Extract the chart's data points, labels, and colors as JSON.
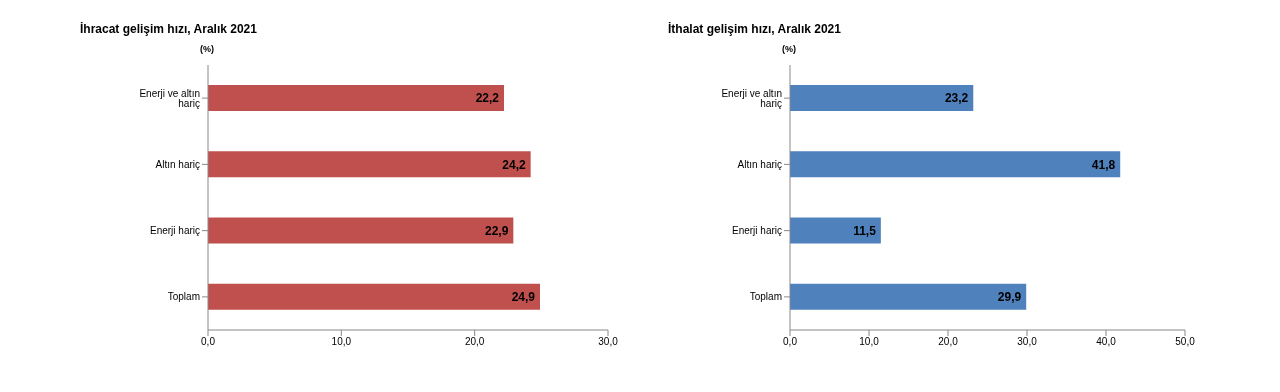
{
  "chart_data": [
    {
      "type": "bar",
      "orientation": "horizontal",
      "title": "İhracat gelişim hızı, Aralık 2021",
      "ylabel": "(%)",
      "categories": [
        "Enerji ve altın hariç",
        "Altın hariç",
        "Enerji hariç",
        "Toplam"
      ],
      "values": [
        22.2,
        24.2,
        22.9,
        24.9
      ],
      "value_labels": [
        "22,2",
        "24,2",
        "22,9",
        "24,9"
      ],
      "color": "#c0504d",
      "xlim": [
        0,
        30
      ],
      "xticks": [
        {
          "value": 0,
          "label": "0,0"
        },
        {
          "value": 10,
          "label": "10,0"
        },
        {
          "value": 20,
          "label": "20,0"
        },
        {
          "value": 30,
          "label": "30,0"
        }
      ],
      "grid": false,
      "legend": false
    },
    {
      "type": "bar",
      "orientation": "horizontal",
      "title": "İthalat gelişim hızı, Aralık 2021",
      "ylabel": "(%)",
      "categories": [
        "Enerji ve altın hariç",
        "Altın hariç",
        "Enerji hariç",
        "Toplam"
      ],
      "values": [
        23.2,
        41.8,
        11.5,
        29.9
      ],
      "value_labels": [
        "23,2",
        "41,8",
        "11,5",
        "29,9"
      ],
      "color": "#4f81bd",
      "xlim": [
        0,
        50
      ],
      "xticks": [
        {
          "value": 0,
          "label": "0,0"
        },
        {
          "value": 10,
          "label": "10,0"
        },
        {
          "value": 20,
          "label": "20,0"
        },
        {
          "value": 30,
          "label": "30,0"
        },
        {
          "value": 40,
          "label": "40,0"
        },
        {
          "value": 50,
          "label": "50,0"
        }
      ],
      "grid": false,
      "legend": false
    }
  ]
}
